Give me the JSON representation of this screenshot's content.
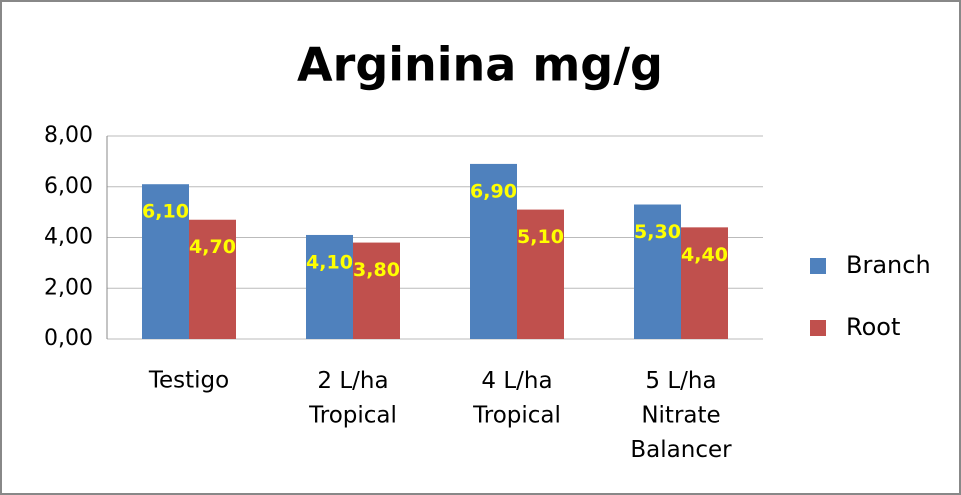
{
  "chart_data": {
    "type": "bar",
    "title": "Arginina mg/g",
    "categories": [
      "Testigo",
      "2 L/ha\nTropical",
      "4 L/ha\nTropical",
      "5 L/ha\nNitrate\nBalancer"
    ],
    "series": [
      {
        "name": "Branch",
        "color": "#4f81bd",
        "values": [
          6.1,
          4.1,
          6.9,
          5.3
        ],
        "value_labels": [
          "6,10",
          "4,10",
          "6,90",
          "5,30"
        ]
      },
      {
        "name": "Root",
        "color": "#c0504d",
        "values": [
          4.7,
          3.8,
          5.1,
          4.4
        ],
        "value_labels": [
          "4,70",
          "3,80",
          "5,10",
          "4,40"
        ]
      }
    ],
    "ylim": [
      0,
      8
    ],
    "yticks": [
      {
        "value": 0,
        "label": "0,00"
      },
      {
        "value": 2,
        "label": "2,00"
      },
      {
        "value": 4,
        "label": "4,00"
      },
      {
        "value": 6,
        "label": "6,00"
      },
      {
        "value": 8,
        "label": "8,00"
      }
    ],
    "grid": true,
    "legend": "right",
    "value_label_color": "#ffff00"
  }
}
